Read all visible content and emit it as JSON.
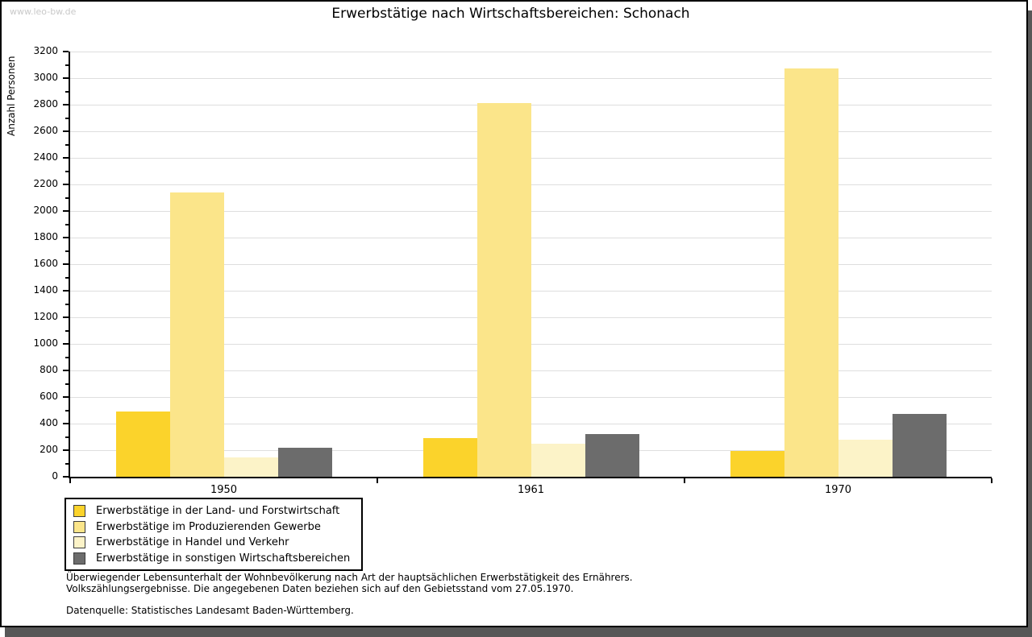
{
  "watermark": "www.leo-bw.de",
  "title": "Erwerbstätige nach Wirtschaftsbereichen: Schonach",
  "footnotes": {
    "line1": "Überwiegender Lebensunterhalt der Wohnbevölkerung nach Art der hauptsächlichen Erwerbstätigkeit des Ernährers.",
    "line2": "Volkszählungsergebnisse. Die angegebenen Daten beziehen sich auf den Gebietsstand vom 27.05.1970.",
    "source": "Datenquelle: Statistisches Landesamt Baden-Württemberg."
  },
  "chart_data": {
    "type": "bar",
    "title": "Erwerbstätige nach Wirtschaftsbereichen: Schonach",
    "ylabel": "Anzahl Personen",
    "xlabel": "",
    "categories": [
      "1950",
      "1961",
      "1970"
    ],
    "series": [
      {
        "name": "Erwerbstätige in der Land- und Forstwirtschaft",
        "color": "#fbd32b",
        "values": [
          490,
          290,
          195
        ]
      },
      {
        "name": "Erwerbstätige im Produzierenden Gewerbe",
        "color": "#fbe58a",
        "values": [
          2140,
          2810,
          3070
        ]
      },
      {
        "name": "Erwerbstätige in Handel und Verkehr",
        "color": "#fcf3c8",
        "values": [
          145,
          250,
          280
        ]
      },
      {
        "name": "Erwerbstätige in sonstigen Wirtschaftsbereichen",
        "color": "#6c6c6c",
        "values": [
          220,
          320,
          470
        ]
      }
    ],
    "ylim": [
      0,
      3200
    ],
    "ytick_step": 200,
    "minor_tick_step": 100,
    "grid": true,
    "gridline_color": "#dedede",
    "legend_position": "bottom-left"
  }
}
